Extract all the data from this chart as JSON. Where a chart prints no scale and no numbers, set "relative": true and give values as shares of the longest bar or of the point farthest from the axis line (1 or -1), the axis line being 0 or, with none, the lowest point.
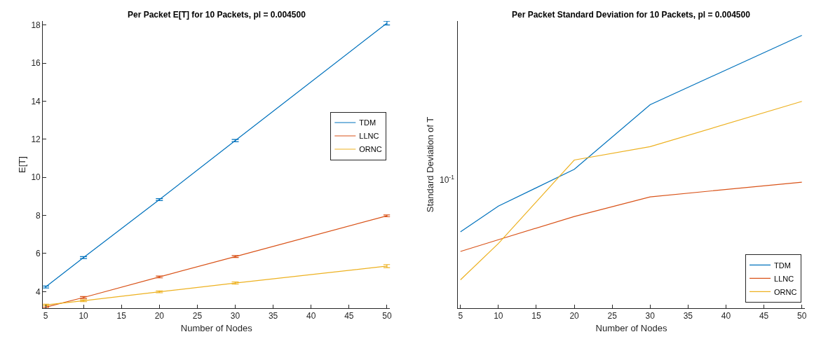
{
  "chart_data": [
    {
      "type": "line",
      "title": "Per Packet E[T] for 10 Packets, pl = 0.004500",
      "xlabel": "Number of Nodes",
      "ylabel": "E[T]",
      "x": [
        5,
        10,
        20,
        30,
        50
      ],
      "xlim": [
        4.65,
        50.4
      ],
      "xticks": [
        5,
        10,
        15,
        20,
        25,
        30,
        35,
        40,
        45,
        50
      ],
      "ylim": [
        3.13,
        18.21
      ],
      "yticks": [
        4,
        6,
        8,
        10,
        12,
        14,
        16,
        18
      ],
      "legend": "right",
      "marker": "none",
      "line_style": "solid",
      "series": [
        {
          "name": "TDM",
          "color": "#0072bd",
          "values": [
            4.24,
            5.79,
            8.83,
            11.93,
            18.1
          ],
          "errors": [
            0.05,
            0.05,
            0.05,
            0.06,
            0.1
          ]
        },
        {
          "name": "LLNC",
          "color": "#d95319",
          "values": [
            3.18,
            3.69,
            4.77,
            5.84,
            7.98
          ],
          "errors": [
            null,
            0.05,
            0.05,
            0.05,
            0.05
          ]
        },
        {
          "name": "ORNC",
          "color": "#edb120",
          "values": [
            3.3,
            3.52,
            3.99,
            4.45,
            5.34
          ],
          "errors": [
            0.04,
            0.05,
            0.05,
            0.06,
            0.08
          ]
        }
      ]
    },
    {
      "type": "line",
      "title": "Per Packet Standard Deviation for 10 Packets, pl = 0.004500",
      "xlabel": "Number of Nodes",
      "ylabel": "Standard Deviation of T",
      "x": [
        5,
        10,
        20,
        30,
        50
      ],
      "xlim": [
        4.65,
        50.4
      ],
      "xticks": [
        5,
        10,
        15,
        20,
        25,
        30,
        35,
        40,
        45,
        50
      ],
      "relative": true,
      "annotations": [
        "10$^{-1}$"
      ],
      "legend": "bottom right",
      "marker": "none",
      "line_style": "solid",
      "series": [
        {
          "name": "TDM",
          "color": "#0072bd",
          "values": [
            0.28,
            0.374,
            0.509,
            0.746,
            1
          ]
        },
        {
          "name": "LLNC",
          "color": "#d95319",
          "values": [
            0.208,
            0.251,
            0.336,
            0.408,
            0.462
          ]
        },
        {
          "name": "ORNC",
          "color": "#edb120",
          "values": [
            0.104,
            0.237,
            0.543,
            0.592,
            0.758
          ]
        }
      ]
    }
  ]
}
